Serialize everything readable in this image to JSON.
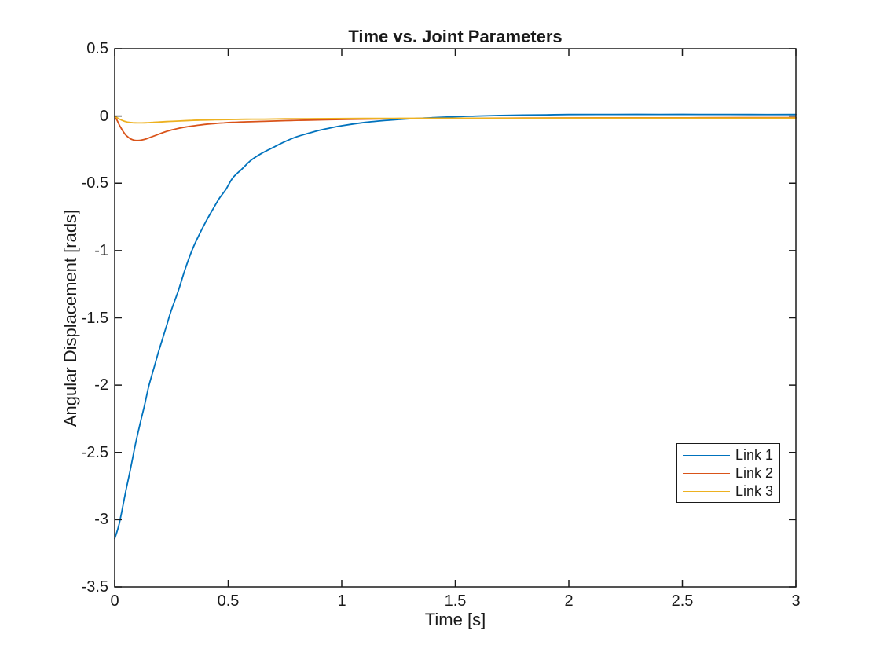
{
  "window": {
    "background": "#ffffff"
  },
  "colors": {
    "axis": "#1a1a1a",
    "text": "#1a1a1a",
    "legend_border": "#1a1a1a",
    "series_blue": "#0072BD",
    "series_orange": "#D95319",
    "series_yellow": "#EDB120"
  },
  "chart_data": {
    "type": "line",
    "title": "Time vs. Joint Parameters",
    "xlabel": "Time [s]",
    "ylabel": "Angular Displacement [rads]",
    "xlim": [
      0,
      3
    ],
    "ylim": [
      -3.5,
      0.5
    ],
    "grid": false,
    "box": true,
    "tick_direction": "in",
    "x_ticks": {
      "values": [
        0,
        0.5,
        1,
        1.5,
        2,
        2.5,
        3
      ],
      "labels": [
        "0",
        "0.5",
        "1",
        "1.5",
        "2",
        "2.5",
        "3"
      ]
    },
    "y_ticks": {
      "values": [
        0.5,
        0,
        -0.5,
        -1,
        -1.5,
        -2,
        -2.5,
        -3,
        -3.5
      ],
      "labels": [
        "0.5",
        "0",
        "-0.5",
        "-1",
        "-1.5",
        "-2",
        "-2.5",
        "-3",
        "-3.5"
      ]
    },
    "legend": {
      "position": "inside-lower-right",
      "entries": [
        "Link 1",
        "Link 2",
        "Link 3"
      ]
    },
    "series": [
      {
        "name": "Link 1",
        "color": "#0072BD",
        "points": [
          [
            0.0,
            -3.141
          ],
          [
            0.01,
            -3.09
          ],
          [
            0.02,
            -3.03
          ],
          [
            0.03,
            -2.95
          ],
          [
            0.05,
            -2.78
          ],
          [
            0.07,
            -2.62
          ],
          [
            0.09,
            -2.45
          ],
          [
            0.11,
            -2.3
          ],
          [
            0.13,
            -2.16
          ],
          [
            0.15,
            -2.01
          ],
          [
            0.17,
            -1.89
          ],
          [
            0.19,
            -1.77
          ],
          [
            0.21,
            -1.66
          ],
          [
            0.23,
            -1.55
          ],
          [
            0.25,
            -1.44
          ],
          [
            0.28,
            -1.3
          ],
          [
            0.31,
            -1.14
          ],
          [
            0.34,
            -1.0
          ],
          [
            0.37,
            -0.89
          ],
          [
            0.4,
            -0.79
          ],
          [
            0.43,
            -0.7
          ],
          [
            0.46,
            -0.615
          ],
          [
            0.49,
            -0.545
          ],
          [
            0.52,
            -0.46
          ],
          [
            0.56,
            -0.395
          ],
          [
            0.6,
            -0.33
          ],
          [
            0.65,
            -0.275
          ],
          [
            0.7,
            -0.232
          ],
          [
            0.75,
            -0.19
          ],
          [
            0.8,
            -0.155
          ],
          [
            0.85,
            -0.13
          ],
          [
            0.9,
            -0.107
          ],
          [
            0.95,
            -0.088
          ],
          [
            1.0,
            -0.072
          ],
          [
            1.1,
            -0.048
          ],
          [
            1.2,
            -0.032
          ],
          [
            1.3,
            -0.02
          ],
          [
            1.4,
            -0.012
          ],
          [
            1.5,
            -0.005
          ],
          [
            1.6,
            0.0
          ],
          [
            1.7,
            0.004
          ],
          [
            1.8,
            0.007
          ],
          [
            1.9,
            0.009
          ],
          [
            2.0,
            0.011
          ],
          [
            2.2,
            0.012
          ],
          [
            2.4,
            0.012
          ],
          [
            2.6,
            0.012
          ],
          [
            2.8,
            0.011
          ],
          [
            3.0,
            0.011
          ]
        ]
      },
      {
        "name": "Link 2",
        "color": "#D95319",
        "points": [
          [
            0.0,
            -0.002
          ],
          [
            0.01,
            -0.03
          ],
          [
            0.02,
            -0.065
          ],
          [
            0.03,
            -0.095
          ],
          [
            0.04,
            -0.122
          ],
          [
            0.05,
            -0.143
          ],
          [
            0.06,
            -0.158
          ],
          [
            0.07,
            -0.17
          ],
          [
            0.08,
            -0.177
          ],
          [
            0.09,
            -0.181
          ],
          [
            0.1,
            -0.182
          ],
          [
            0.11,
            -0.181
          ],
          [
            0.12,
            -0.178
          ],
          [
            0.14,
            -0.169
          ],
          [
            0.16,
            -0.157
          ],
          [
            0.18,
            -0.144
          ],
          [
            0.2,
            -0.131
          ],
          [
            0.22,
            -0.119
          ],
          [
            0.24,
            -0.109
          ],
          [
            0.26,
            -0.1
          ],
          [
            0.28,
            -0.092
          ],
          [
            0.3,
            -0.085
          ],
          [
            0.33,
            -0.077
          ],
          [
            0.36,
            -0.07
          ],
          [
            0.4,
            -0.062
          ],
          [
            0.44,
            -0.056
          ],
          [
            0.48,
            -0.051
          ],
          [
            0.52,
            -0.047
          ],
          [
            0.58,
            -0.043
          ],
          [
            0.64,
            -0.04
          ],
          [
            0.7,
            -0.037
          ],
          [
            0.78,
            -0.033
          ],
          [
            0.86,
            -0.03
          ],
          [
            0.95,
            -0.027
          ],
          [
            1.05,
            -0.024
          ],
          [
            1.15,
            -0.022
          ],
          [
            1.3,
            -0.019
          ],
          [
            1.45,
            -0.017
          ],
          [
            1.6,
            -0.016
          ],
          [
            1.8,
            -0.015
          ],
          [
            2.0,
            -0.014
          ],
          [
            2.25,
            -0.013
          ],
          [
            2.5,
            -0.013
          ],
          [
            2.75,
            -0.012
          ],
          [
            3.0,
            -0.012
          ]
        ]
      },
      {
        "name": "Link 3",
        "color": "#EDB120",
        "points": [
          [
            0.0,
            -0.001
          ],
          [
            0.01,
            -0.012
          ],
          [
            0.02,
            -0.022
          ],
          [
            0.03,
            -0.03
          ],
          [
            0.04,
            -0.037
          ],
          [
            0.05,
            -0.042
          ],
          [
            0.06,
            -0.046
          ],
          [
            0.08,
            -0.05
          ],
          [
            0.1,
            -0.051
          ],
          [
            0.12,
            -0.051
          ],
          [
            0.14,
            -0.05
          ],
          [
            0.17,
            -0.047
          ],
          [
            0.2,
            -0.044
          ],
          [
            0.24,
            -0.04
          ],
          [
            0.28,
            -0.037
          ],
          [
            0.33,
            -0.033
          ],
          [
            0.38,
            -0.03
          ],
          [
            0.44,
            -0.028
          ],
          [
            0.5,
            -0.026
          ],
          [
            0.58,
            -0.024
          ],
          [
            0.66,
            -0.023
          ],
          [
            0.75,
            -0.021
          ],
          [
            0.85,
            -0.02
          ],
          [
            0.95,
            -0.019
          ],
          [
            1.1,
            -0.018
          ],
          [
            1.3,
            -0.017
          ],
          [
            1.5,
            -0.016
          ],
          [
            1.8,
            -0.016
          ],
          [
            2.1,
            -0.015
          ],
          [
            2.5,
            -0.015
          ],
          [
            3.0,
            -0.015
          ]
        ]
      }
    ]
  }
}
